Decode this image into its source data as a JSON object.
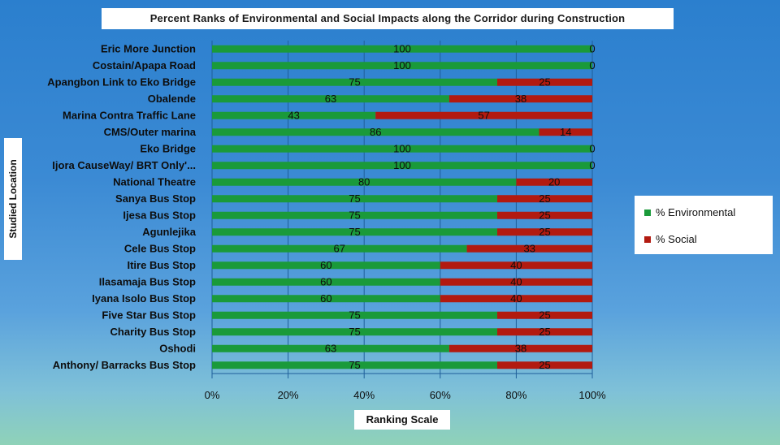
{
  "colors": {
    "environmental": "#1a9a3a",
    "social": "#b21a10",
    "gridline": "#1f5f9a",
    "background": "#2b7fce"
  },
  "chart_data": {
    "type": "bar",
    "orientation": "horizontal",
    "stacked": true,
    "title": "Percent Ranks of Environmental and Social Impacts along the Corridor during Construction",
    "xlabel": "Ranking Scale",
    "ylabel": "Studied Location",
    "xlim": [
      0,
      100
    ],
    "xticks": [
      "0%",
      "20%",
      "40%",
      "60%",
      "80%",
      "100%"
    ],
    "grid": true,
    "legend_position": "right",
    "categories": [
      "Eric More Junction",
      "Costain/Apapa Road",
      "Apangbon Link to Eko Bridge",
      "Obalende",
      "Marina Contra Traffic Lane",
      "CMS/Outer marina",
      "Eko Bridge",
      "Ijora CauseWay/ BRT Only'...",
      "National Theatre",
      "Sanya Bus Stop",
      "Ijesa Bus Stop",
      "Agunlejika",
      "Cele Bus Stop",
      "Itire Bus Stop",
      "Ilasamaja Bus Stop",
      "Iyana Isolo Bus Stop",
      "Five Star Bus Stop",
      "Charity Bus Stop",
      "Oshodi",
      "Anthony/ Barracks Bus Stop"
    ],
    "series": [
      {
        "name": "% Environmental",
        "values": [
          100,
          100,
          75,
          63,
          43,
          86,
          100,
          100,
          80,
          75,
          75,
          75,
          67,
          60,
          60,
          60,
          75,
          75,
          63,
          75
        ]
      },
      {
        "name": "% Social",
        "values": [
          0,
          0,
          25,
          38,
          57,
          14,
          0,
          0,
          20,
          25,
          25,
          25,
          33,
          40,
          40,
          40,
          25,
          25,
          38,
          25
        ]
      }
    ]
  }
}
